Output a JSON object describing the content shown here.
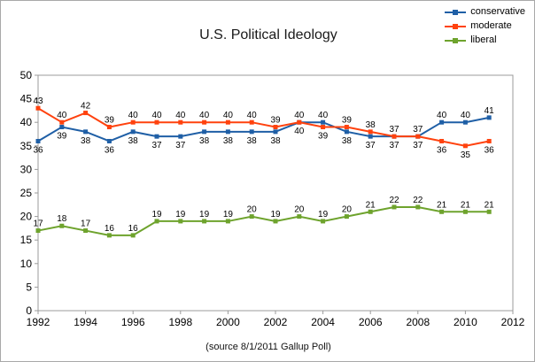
{
  "source_note": "(source 8/1/2011 Gallup Poll)",
  "chart_data": {
    "type": "line",
    "title": "U.S. Political Ideology",
    "xlabel": "",
    "ylabel": "",
    "x": [
      1992,
      1993,
      1994,
      1995,
      1996,
      1997,
      1998,
      1999,
      2000,
      2001,
      2002,
      2003,
      2004,
      2005,
      2006,
      2007,
      2008,
      2009,
      2010,
      2011
    ],
    "series": [
      {
        "name": "conservative",
        "color": "#1F5FA6",
        "label_placement": "auto",
        "values": [
          36,
          39,
          38,
          36,
          38,
          37,
          37,
          38,
          38,
          38,
          38,
          40,
          40,
          38,
          37,
          37,
          37,
          40,
          40,
          41
        ]
      },
      {
        "name": "moderate",
        "color": "#FF420E",
        "label_placement": "auto",
        "values": [
          43,
          40,
          42,
          39,
          40,
          40,
          40,
          40,
          40,
          40,
          39,
          40,
          39,
          39,
          38,
          37,
          37,
          36,
          35,
          36
        ]
      },
      {
        "name": "liberal",
        "color": "#6EA32D",
        "label_placement": "above",
        "values": [
          17,
          18,
          17,
          16,
          16,
          19,
          19,
          19,
          19,
          20,
          19,
          20,
          19,
          20,
          21,
          22,
          22,
          21,
          21,
          21
        ]
      }
    ],
    "xlim": [
      1992,
      2012
    ],
    "ylim": [
      0,
      50
    ],
    "x_ticks": [
      1992,
      1994,
      1996,
      1998,
      2000,
      2002,
      2004,
      2006,
      2008,
      2010,
      2012
    ],
    "y_ticks": [
      0,
      5,
      10,
      15,
      20,
      25,
      30,
      35,
      40,
      45,
      50
    ],
    "grid": false,
    "legend_position": "top-right"
  }
}
